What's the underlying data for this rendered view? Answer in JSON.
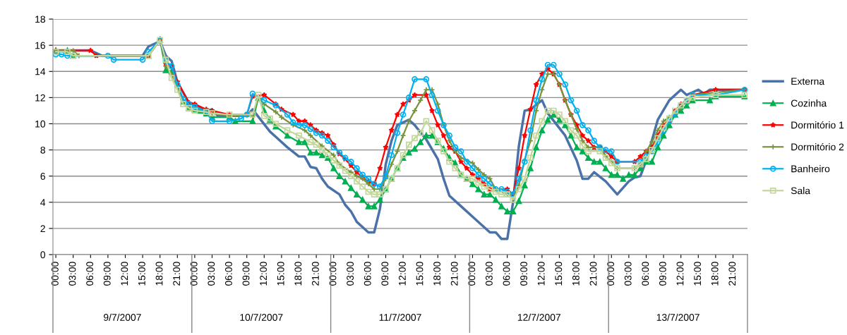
{
  "chart_data": {
    "type": "line",
    "xlim": [
      "2007-07-08T23:30",
      "2007-07-13T23:30"
    ],
    "ylim": [
      0,
      18
    ],
    "yticks": [
      0,
      2,
      4,
      6,
      8,
      10,
      12,
      14,
      16,
      18
    ],
    "grid": "y",
    "legend": "right",
    "xticks": [
      {
        "value": "2007-07-09T00:00",
        "label": "00:00"
      },
      {
        "value": "2007-07-09T03:00",
        "label": "03:00"
      },
      {
        "value": "2007-07-09T06:00",
        "label": "06:00"
      },
      {
        "value": "2007-07-09T09:00",
        "label": "09:00"
      },
      {
        "value": "2007-07-09T12:00",
        "label": "12:00"
      },
      {
        "value": "2007-07-09T15:00",
        "label": "15:00"
      },
      {
        "value": "2007-07-09T18:00",
        "label": "18:00"
      },
      {
        "value": "2007-07-09T21:00",
        "label": "21:00"
      },
      {
        "value": "2007-07-10T00:00",
        "label": "00:00"
      },
      {
        "value": "2007-07-10T03:00",
        "label": "03:00"
      },
      {
        "value": "2007-07-10T06:00",
        "label": "06:00"
      },
      {
        "value": "2007-07-10T09:00",
        "label": "09:00"
      },
      {
        "value": "2007-07-10T12:00",
        "label": "12:00"
      },
      {
        "value": "2007-07-10T15:00",
        "label": "15:00"
      },
      {
        "value": "2007-07-10T18:00",
        "label": "18:00"
      },
      {
        "value": "2007-07-10T21:00",
        "label": "21:00"
      },
      {
        "value": "2007-07-11T00:00",
        "label": "00:00"
      },
      {
        "value": "2007-07-11T03:00",
        "label": "03:00"
      },
      {
        "value": "2007-07-11T06:00",
        "label": "06:00"
      },
      {
        "value": "2007-07-11T09:00",
        "label": "09:00"
      },
      {
        "value": "2007-07-11T12:00",
        "label": "12:00"
      },
      {
        "value": "2007-07-11T15:00",
        "label": "15:00"
      },
      {
        "value": "2007-07-11T18:00",
        "label": "18:00"
      },
      {
        "value": "2007-07-11T21:00",
        "label": "21:00"
      },
      {
        "value": "2007-07-12T00:00",
        "label": "00:00"
      },
      {
        "value": "2007-07-12T03:00",
        "label": "03:00"
      },
      {
        "value": "2007-07-12T06:00",
        "label": "06:00"
      },
      {
        "value": "2007-07-12T09:00",
        "label": "09:00"
      },
      {
        "value": "2007-07-12T12:00",
        "label": "12:00"
      },
      {
        "value": "2007-07-12T15:00",
        "label": "15:00"
      },
      {
        "value": "2007-07-12T18:00",
        "label": "18:00"
      },
      {
        "value": "2007-07-12T21:00",
        "label": "21:00"
      },
      {
        "value": "2007-07-13T00:00",
        "label": "00:00"
      },
      {
        "value": "2007-07-13T03:00",
        "label": "03:00"
      },
      {
        "value": "2007-07-13T06:00",
        "label": "06:00"
      },
      {
        "value": "2007-07-13T09:00",
        "label": "09:00"
      },
      {
        "value": "2007-07-13T12:00",
        "label": "12:00"
      },
      {
        "value": "2007-07-13T15:00",
        "label": "15:00"
      },
      {
        "value": "2007-07-13T18:00",
        "label": "18:00"
      },
      {
        "value": "2007-07-13T21:00",
        "label": "21:00"
      }
    ],
    "annotations": [
      "9/7/2007",
      "10/7/2007",
      "11/7/2007",
      "12/7/2007",
      "13/7/2007"
    ],
    "series": [
      {
        "name": "Externa",
        "color": "#4a72a8",
        "marker": "none",
        "x": [
          "2007-07-09T00:00",
          "2007-07-09T06:00",
          "2007-07-09T08:00",
          "2007-07-09T15:00",
          "2007-07-09T16:00",
          "2007-07-09T18:00",
          "2007-07-09T19:00",
          "2007-07-09T20:00",
          "2007-07-09T21:00",
          "2007-07-09T23:00",
          "2007-07-10T00:00",
          "2007-07-10T02:00",
          "2007-07-10T03:00",
          "2007-07-10T04:00",
          "2007-07-10T09:00",
          "2007-07-10T10:00",
          "2007-07-10T13:00",
          "2007-07-10T14:00",
          "2007-07-10T16:00",
          "2007-07-10T18:00",
          "2007-07-10T19:00",
          "2007-07-10T20:00",
          "2007-07-10T21:00",
          "2007-07-10T22:00",
          "2007-07-10T23:00",
          "2007-07-11T01:00",
          "2007-07-11T02:00",
          "2007-07-11T03:00",
          "2007-07-11T04:00",
          "2007-07-11T06:00",
          "2007-07-11T07:00",
          "2007-07-11T08:00",
          "2007-07-11T09:00",
          "2007-07-11T10:00",
          "2007-07-11T11:00",
          "2007-07-11T13:00",
          "2007-07-11T14:00",
          "2007-07-11T16:00",
          "2007-07-11T18:00",
          "2007-07-11T19:00",
          "2007-07-11T20:00",
          "2007-07-11T22:00",
          "2007-07-12T00:00",
          "2007-07-12T03:00",
          "2007-07-12T04:00",
          "2007-07-12T05:00",
          "2007-07-12T06:00",
          "2007-07-12T07:00",
          "2007-07-12T08:00",
          "2007-07-12T09:00",
          "2007-07-12T10:00",
          "2007-07-12T12:00",
          "2007-07-12T13:00",
          "2007-07-12T16:00",
          "2007-07-12T18:00",
          "2007-07-12T19:00",
          "2007-07-12T20:00",
          "2007-07-12T21:00",
          "2007-07-12T23:00",
          "2007-07-13T01:00",
          "2007-07-13T03:00",
          "2007-07-13T04:00",
          "2007-07-13T05:00",
          "2007-07-13T06:00",
          "2007-07-13T08:00",
          "2007-07-13T10:00",
          "2007-07-13T12:00",
          "2007-07-13T13:00",
          "2007-07-13T15:00",
          "2007-07-13T16:00",
          "2007-07-13T17:00",
          "2007-07-13T23:00"
        ],
        "values": [
          15.6,
          15.6,
          15.2,
          15.2,
          15.9,
          16.3,
          15.2,
          14.8,
          13.2,
          11.6,
          11.5,
          11.0,
          11.1,
          10.6,
          10.6,
          11.1,
          9.4,
          9.0,
          8.2,
          7.5,
          7.5,
          6.7,
          6.6,
          5.8,
          5.2,
          4.6,
          3.8,
          3.3,
          2.5,
          1.7,
          1.7,
          3.5,
          6.9,
          8.7,
          9.9,
          10.3,
          9.9,
          8.8,
          7.3,
          5.8,
          4.5,
          3.7,
          2.9,
          1.7,
          1.7,
          1.2,
          1.2,
          4.0,
          8.3,
          11.0,
          11.1,
          11.8,
          10.8,
          9.1,
          7.2,
          5.8,
          5.8,
          6.3,
          5.6,
          4.6,
          5.6,
          5.9,
          6.0,
          7.2,
          10.3,
          11.8,
          12.6,
          12.2,
          12.6,
          12.3,
          12.6,
          12.6
        ]
      },
      {
        "name": "Cozinha",
        "color": "#00b050",
        "marker": "triangle",
        "x": [
          "2007-07-09T00:00",
          "2007-07-09T02:00",
          "2007-07-09T03:00",
          "2007-07-09T16:00",
          "2007-07-09T18:00",
          "2007-07-09T19:00",
          "2007-07-09T20:00",
          "2007-07-09T21:00",
          "2007-07-09T22:00",
          "2007-07-09T23:00",
          "2007-07-10T00:00",
          "2007-07-10T01:00",
          "2007-07-10T02:00",
          "2007-07-10T03:00",
          "2007-07-10T06:00",
          "2007-07-10T07:00",
          "2007-07-10T10:00",
          "2007-07-10T11:00",
          "2007-07-10T12:00",
          "2007-07-10T13:00",
          "2007-07-10T14:00",
          "2007-07-10T16:00",
          "2007-07-10T18:00",
          "2007-07-10T19:00",
          "2007-07-10T20:00",
          "2007-07-10T21:00",
          "2007-07-10T22:00",
          "2007-07-10T23:00",
          "2007-07-11T00:00",
          "2007-07-11T01:00",
          "2007-07-11T02:00",
          "2007-07-11T03:00",
          "2007-07-11T04:00",
          "2007-07-11T05:00",
          "2007-07-11T06:00",
          "2007-07-11T07:00",
          "2007-07-11T08:00",
          "2007-07-11T09:00",
          "2007-07-11T10:00",
          "2007-07-11T11:00",
          "2007-07-11T12:00",
          "2007-07-11T13:00",
          "2007-07-11T14:00",
          "2007-07-11T15:00",
          "2007-07-11T16:00",
          "2007-07-11T17:00",
          "2007-07-11T18:00",
          "2007-07-11T19:00",
          "2007-07-11T20:00",
          "2007-07-11T21:00",
          "2007-07-11T22:00",
          "2007-07-11T23:00",
          "2007-07-12T00:00",
          "2007-07-12T01:00",
          "2007-07-12T02:00",
          "2007-07-12T03:00",
          "2007-07-12T04:00",
          "2007-07-12T05:00",
          "2007-07-12T06:00",
          "2007-07-12T07:00",
          "2007-07-12T08:00",
          "2007-07-12T09:00",
          "2007-07-12T10:00",
          "2007-07-12T11:00",
          "2007-07-12T12:00",
          "2007-07-12T13:00",
          "2007-07-12T14:00",
          "2007-07-12T15:00",
          "2007-07-12T16:00",
          "2007-07-12T17:00",
          "2007-07-12T18:00",
          "2007-07-12T19:00",
          "2007-07-12T20:00",
          "2007-07-12T21:00",
          "2007-07-12T22:00",
          "2007-07-12T23:00",
          "2007-07-13T00:00",
          "2007-07-13T01:00",
          "2007-07-13T02:00",
          "2007-07-13T03:00",
          "2007-07-13T04:00",
          "2007-07-13T05:00",
          "2007-07-13T06:00",
          "2007-07-13T07:00",
          "2007-07-13T08:00",
          "2007-07-13T09:00",
          "2007-07-13T10:00",
          "2007-07-13T11:00",
          "2007-07-13T12:00",
          "2007-07-13T13:00",
          "2007-07-13T14:00",
          "2007-07-13T17:00",
          "2007-07-13T18:00",
          "2007-07-13T23:00"
        ],
        "values": [
          15.6,
          15.6,
          15.2,
          15.2,
          16.4,
          14.1,
          14.0,
          13.0,
          11.7,
          11.2,
          11.1,
          11.0,
          10.8,
          10.5,
          10.5,
          10.2,
          10.2,
          12.0,
          11.0,
          10.3,
          9.8,
          9.1,
          8.6,
          8.6,
          7.8,
          7.8,
          7.6,
          7.4,
          6.6,
          6.0,
          5.6,
          5.1,
          4.6,
          4.2,
          3.7,
          3.7,
          4.2,
          5.0,
          5.8,
          6.6,
          7.4,
          7.8,
          8.1,
          8.6,
          9.1,
          9.1,
          8.6,
          8.1,
          7.4,
          7.0,
          6.1,
          5.8,
          5.4,
          5.0,
          4.6,
          4.6,
          4.2,
          3.7,
          3.3,
          3.3,
          4.1,
          5.3,
          6.6,
          8.2,
          9.5,
          10.3,
          10.7,
          10.3,
          9.9,
          9.1,
          8.2,
          7.9,
          7.4,
          7.1,
          7.1,
          6.6,
          6.1,
          6.1,
          5.8,
          6.1,
          6.1,
          6.6,
          7.1,
          7.1,
          8.2,
          9.1,
          9.9,
          10.7,
          11.0,
          11.4,
          11.8,
          11.8,
          12.1,
          12.1
        ]
      },
      {
        "name": "Dormitório 1",
        "color": "#ff0000",
        "marker": "star",
        "x": [
          "2007-07-09T00:00",
          "2007-07-09T06:00",
          "2007-07-09T07:00",
          "2007-07-09T16:00",
          "2007-07-09T18:00",
          "2007-07-09T19:00",
          "2007-07-09T20:00",
          "2007-07-09T21:00",
          "2007-07-09T23:00",
          "2007-07-10T00:00",
          "2007-07-10T02:00",
          "2007-07-10T03:00",
          "2007-07-10T06:00",
          "2007-07-10T09:00",
          "2007-07-10T10:00",
          "2007-07-10T12:00",
          "2007-07-10T14:00",
          "2007-07-10T15:00",
          "2007-07-10T17:00",
          "2007-07-10T18:00",
          "2007-07-10T19:00",
          "2007-07-10T20:00",
          "2007-07-10T21:00",
          "2007-07-10T22:00",
          "2007-07-10T23:00",
          "2007-07-11T00:00",
          "2007-07-11T01:00",
          "2007-07-11T02:00",
          "2007-07-11T03:00",
          "2007-07-11T04:00",
          "2007-07-11T05:00",
          "2007-07-11T06:00",
          "2007-07-11T07:00",
          "2007-07-11T08:00",
          "2007-07-11T09:00",
          "2007-07-11T10:00",
          "2007-07-11T11:00",
          "2007-07-11T12:00",
          "2007-07-11T13:00",
          "2007-07-11T14:00",
          "2007-07-11T16:00",
          "2007-07-11T17:00",
          "2007-07-11T18:00",
          "2007-07-11T19:00",
          "2007-07-11T20:00",
          "2007-07-11T21:00",
          "2007-07-11T22:00",
          "2007-07-11T23:00",
          "2007-07-12T00:00",
          "2007-07-12T01:00",
          "2007-07-12T02:00",
          "2007-07-12T03:00",
          "2007-07-12T06:00",
          "2007-07-12T07:00",
          "2007-07-12T08:00",
          "2007-07-12T09:00",
          "2007-07-12T10:00",
          "2007-07-12T11:00",
          "2007-07-12T12:00",
          "2007-07-12T13:00",
          "2007-07-12T14:00",
          "2007-07-12T15:00",
          "2007-07-12T16:00",
          "2007-07-12T17:00",
          "2007-07-12T18:00",
          "2007-07-12T19:00",
          "2007-07-12T20:00",
          "2007-07-12T21:00",
          "2007-07-12T22:00",
          "2007-07-12T23:00",
          "2007-07-13T00:00",
          "2007-07-13T01:00",
          "2007-07-13T04:00",
          "2007-07-13T05:00",
          "2007-07-13T06:00",
          "2007-07-13T07:00",
          "2007-07-13T08:00",
          "2007-07-13T09:00",
          "2007-07-13T10:00",
          "2007-07-13T11:00",
          "2007-07-13T12:00",
          "2007-07-13T13:00",
          "2007-07-13T14:00",
          "2007-07-13T18:00",
          "2007-07-13T23:00"
        ],
        "values": [
          15.6,
          15.6,
          15.2,
          15.2,
          16.4,
          14.6,
          14.4,
          13.2,
          11.6,
          11.5,
          11.1,
          11.0,
          10.7,
          10.7,
          12.1,
          12.2,
          11.5,
          11.1,
          10.7,
          10.2,
          10.2,
          9.9,
          9.5,
          9.3,
          9.1,
          8.4,
          7.7,
          7.3,
          6.8,
          6.3,
          5.9,
          5.6,
          5.4,
          6.6,
          8.2,
          9.5,
          10.7,
          11.5,
          11.8,
          12.2,
          12.2,
          11.0,
          9.9,
          9.1,
          8.2,
          7.9,
          7.1,
          6.6,
          6.1,
          5.8,
          5.4,
          5.0,
          5.0,
          4.6,
          6.6,
          9.1,
          11.1,
          13.0,
          13.8,
          14.2,
          13.8,
          13.0,
          11.8,
          10.7,
          9.9,
          9.1,
          8.7,
          8.2,
          8.2,
          7.9,
          7.5,
          7.1,
          7.1,
          7.5,
          7.9,
          8.2,
          9.1,
          9.9,
          10.3,
          11.0,
          11.5,
          11.8,
          12.2,
          12.6,
          12.6
        ]
      },
      {
        "name": "Dormitório 2",
        "color": "#77933c",
        "marker": "cross",
        "x": [
          "2007-07-09T00:00",
          "2007-07-09T03:00",
          "2007-07-09T04:00",
          "2007-07-09T16:00",
          "2007-07-09T18:00",
          "2007-07-09T19:00",
          "2007-07-09T20:00",
          "2007-07-09T21:00",
          "2007-07-09T22:00",
          "2007-07-09T23:00",
          "2007-07-10T00:00",
          "2007-07-10T02:00",
          "2007-07-10T03:00",
          "2007-07-10T06:00",
          "2007-07-10T10:00",
          "2007-07-10T11:00",
          "2007-07-10T12:00",
          "2007-07-10T14:00",
          "2007-07-10T15:00",
          "2007-07-10T17:00",
          "2007-07-10T19:00",
          "2007-07-10T20:00",
          "2007-07-10T22:00",
          "2007-07-11T00:00",
          "2007-07-11T01:00",
          "2007-07-11T03:00",
          "2007-07-11T04:00",
          "2007-07-11T05:00",
          "2007-07-11T06:00",
          "2007-07-11T07:00",
          "2007-07-11T08:00",
          "2007-07-11T09:00",
          "2007-07-11T10:00",
          "2007-07-11T11:00",
          "2007-07-11T12:00",
          "2007-07-11T13:00",
          "2007-07-11T14:00",
          "2007-07-11T15:00",
          "2007-07-11T16:00",
          "2007-07-11T17:00",
          "2007-07-11T18:00",
          "2007-07-11T19:00",
          "2007-07-11T20:00",
          "2007-07-11T21:00",
          "2007-07-11T22:00",
          "2007-07-12T00:00",
          "2007-07-12T01:00",
          "2007-07-12T02:00",
          "2007-07-12T03:00",
          "2007-07-12T04:00",
          "2007-07-12T06:00",
          "2007-07-12T07:00",
          "2007-07-12T08:00",
          "2007-07-12T09:00",
          "2007-07-12T10:00",
          "2007-07-12T11:00",
          "2007-07-12T12:00",
          "2007-07-12T13:00",
          "2007-07-12T14:00",
          "2007-07-12T15:00",
          "2007-07-12T16:00",
          "2007-07-12T17:00",
          "2007-07-12T18:00",
          "2007-07-12T19:00",
          "2007-07-12T20:00",
          "2007-07-12T22:00",
          "2007-07-12T23:00",
          "2007-07-13T00:00",
          "2007-07-13T01:00",
          "2007-07-13T04:00",
          "2007-07-13T05:00",
          "2007-07-13T06:00",
          "2007-07-13T07:00",
          "2007-07-13T08:00",
          "2007-07-13T09:00",
          "2007-07-13T10:00",
          "2007-07-13T11:00",
          "2007-07-13T12:00",
          "2007-07-13T13:00",
          "2007-07-13T14:00",
          "2007-07-13T18:00",
          "2007-07-13T23:00"
        ],
        "values": [
          15.6,
          15.6,
          15.2,
          15.2,
          16.5,
          14.4,
          13.8,
          12.8,
          11.8,
          11.3,
          11.2,
          10.9,
          10.8,
          10.6,
          10.6,
          12.0,
          11.5,
          10.9,
          10.5,
          9.9,
          9.5,
          9.1,
          8.3,
          7.6,
          6.9,
          6.3,
          6.0,
          5.8,
          5.4,
          5.0,
          5.0,
          5.8,
          6.9,
          7.9,
          9.1,
          10.2,
          11.0,
          11.8,
          12.6,
          12.6,
          11.5,
          9.9,
          8.7,
          7.9,
          7.4,
          7.0,
          6.5,
          6.1,
          5.8,
          5.0,
          4.6,
          4.3,
          5.3,
          7.2,
          8.7,
          11.0,
          12.6,
          13.8,
          13.8,
          13.0,
          11.8,
          10.7,
          9.6,
          8.7,
          8.2,
          8.2,
          7.5,
          7.1,
          6.6,
          6.6,
          6.9,
          7.9,
          8.6,
          9.5,
          10.2,
          10.5,
          10.8,
          11.2,
          11.8,
          12.2,
          12.4,
          12.6
        ]
      },
      {
        "name": "Banheiro",
        "color": "#00b0f0",
        "marker": "circle",
        "x": [
          "2007-07-09T00:00",
          "2007-07-09T01:00",
          "2007-07-09T02:00",
          "2007-07-09T09:00",
          "2007-07-09T10:00",
          "2007-07-09T15:00",
          "2007-07-09T16:00",
          "2007-07-09T18:00",
          "2007-07-09T19:00",
          "2007-07-09T20:00",
          "2007-07-09T21:00",
          "2007-07-09T22:00",
          "2007-07-09T23:00",
          "2007-07-10T00:00",
          "2007-07-10T02:00",
          "2007-07-10T03:00",
          "2007-07-10T06:00",
          "2007-07-10T08:00",
          "2007-07-10T09:00",
          "2007-07-10T10:00",
          "2007-07-10T12:00",
          "2007-07-10T14:00",
          "2007-07-10T16:00",
          "2007-07-10T17:00",
          "2007-07-10T18:00",
          "2007-07-10T19:00",
          "2007-07-10T20:00",
          "2007-07-10T21:00",
          "2007-07-10T22:00",
          "2007-07-10T23:00",
          "2007-07-11T00:00",
          "2007-07-11T01:00",
          "2007-07-11T02:00",
          "2007-07-11T03:00",
          "2007-07-11T04:00",
          "2007-07-11T05:00",
          "2007-07-11T06:00",
          "2007-07-11T07:00",
          "2007-07-11T08:00",
          "2007-07-11T09:00",
          "2007-07-11T10:00",
          "2007-07-11T11:00",
          "2007-07-11T12:00",
          "2007-07-11T13:00",
          "2007-07-11T14:00",
          "2007-07-11T16:00",
          "2007-07-11T17:00",
          "2007-07-11T18:00",
          "2007-07-11T19:00",
          "2007-07-11T20:00",
          "2007-07-11T21:00",
          "2007-07-11T22:00",
          "2007-07-11T23:00",
          "2007-07-12T00:00",
          "2007-07-12T01:00",
          "2007-07-12T02:00",
          "2007-07-12T03:00",
          "2007-07-12T04:00",
          "2007-07-12T05:00",
          "2007-07-12T06:00",
          "2007-07-12T07:00",
          "2007-07-12T08:00",
          "2007-07-12T09:00",
          "2007-07-12T10:00",
          "2007-07-12T11:00",
          "2007-07-12T12:00",
          "2007-07-12T13:00",
          "2007-07-12T14:00",
          "2007-07-12T15:00",
          "2007-07-12T16:00",
          "2007-07-12T17:00",
          "2007-07-12T18:00",
          "2007-07-12T19:00",
          "2007-07-12T20:00",
          "2007-07-12T21:00",
          "2007-07-12T22:00",
          "2007-07-12T23:00",
          "2007-07-13T00:00",
          "2007-07-13T01:00",
          "2007-07-13T05:00",
          "2007-07-13T06:00",
          "2007-07-13T07:00",
          "2007-07-13T08:00",
          "2007-07-13T09:00",
          "2007-07-13T10:00",
          "2007-07-13T11:00",
          "2007-07-13T12:00",
          "2007-07-13T13:00",
          "2007-07-13T14:00",
          "2007-07-13T18:00",
          "2007-07-13T23:00"
        ],
        "values": [
          15.3,
          15.3,
          15.2,
          15.2,
          14.9,
          14.9,
          15.5,
          16.4,
          14.8,
          14.4,
          13.0,
          11.9,
          11.5,
          11.3,
          10.9,
          10.2,
          10.2,
          10.4,
          10.7,
          12.3,
          11.8,
          11.4,
          10.7,
          10.1,
          9.9,
          9.9,
          9.6,
          9.3,
          9.1,
          8.7,
          8.2,
          7.8,
          7.4,
          7.1,
          6.6,
          6.1,
          5.8,
          5.4,
          5.2,
          6.0,
          7.6,
          9.3,
          10.7,
          12.0,
          13.4,
          13.4,
          12.2,
          11.0,
          9.9,
          9.1,
          8.2,
          7.9,
          7.1,
          6.6,
          6.1,
          5.8,
          5.4,
          5.0,
          5.0,
          4.8,
          4.6,
          5.8,
          7.1,
          9.5,
          11.8,
          13.4,
          14.5,
          14.5,
          13.8,
          13.0,
          11.8,
          11.0,
          9.9,
          9.5,
          8.7,
          8.2,
          8.0,
          7.9,
          7.1,
          7.1,
          7.5,
          7.9,
          8.6,
          9.5,
          10.2,
          10.8,
          11.4,
          11.7,
          12.2,
          12.2,
          12.6
        ]
      },
      {
        "name": "Sala",
        "color": "#c3d69b",
        "marker": "square",
        "x": [
          "2007-07-09T00:00",
          "2007-07-09T02:00",
          "2007-07-09T03:00",
          "2007-07-09T16:00",
          "2007-07-09T18:00",
          "2007-07-09T19:00",
          "2007-07-09T20:00",
          "2007-07-09T21:00",
          "2007-07-09T22:00",
          "2007-07-09T23:00",
          "2007-07-10T00:00",
          "2007-07-10T02:00",
          "2007-07-10T03:00",
          "2007-07-10T06:00",
          "2007-07-10T10:00",
          "2007-07-10T11:00",
          "2007-07-10T12:00",
          "2007-07-10T13:00",
          "2007-07-10T14:00",
          "2007-07-10T16:00",
          "2007-07-10T18:00",
          "2007-07-10T20:00",
          "2007-07-10T21:00",
          "2007-07-10T22:00",
          "2007-07-10T23:00",
          "2007-07-11T00:00",
          "2007-07-11T01:00",
          "2007-07-11T02:00",
          "2007-07-11T03:00",
          "2007-07-11T04:00",
          "2007-07-11T05:00",
          "2007-07-11T06:00",
          "2007-07-11T07:00",
          "2007-07-11T08:00",
          "2007-07-11T09:00",
          "2007-07-11T10:00",
          "2007-07-11T11:00",
          "2007-07-11T12:00",
          "2007-07-11T13:00",
          "2007-07-11T14:00",
          "2007-07-11T15:00",
          "2007-07-11T16:00",
          "2007-07-11T17:00",
          "2007-07-11T18:00",
          "2007-07-11T19:00",
          "2007-07-11T20:00",
          "2007-07-11T21:00",
          "2007-07-11T22:00",
          "2007-07-11T23:00",
          "2007-07-12T00:00",
          "2007-07-12T01:00",
          "2007-07-12T02:00",
          "2007-07-12T03:00",
          "2007-07-12T04:00",
          "2007-07-12T05:00",
          "2007-07-12T06:00",
          "2007-07-12T07:00",
          "2007-07-12T08:00",
          "2007-07-12T09:00",
          "2007-07-12T10:00",
          "2007-07-12T11:00",
          "2007-07-12T12:00",
          "2007-07-12T13:00",
          "2007-07-12T14:00",
          "2007-07-12T15:00",
          "2007-07-12T16:00",
          "2007-07-12T17:00",
          "2007-07-12T18:00",
          "2007-07-12T19:00",
          "2007-07-12T20:00",
          "2007-07-12T22:00",
          "2007-07-12T23:00",
          "2007-07-13T00:00",
          "2007-07-13T01:00",
          "2007-07-13T04:00",
          "2007-07-13T05:00",
          "2007-07-13T06:00",
          "2007-07-13T07:00",
          "2007-07-13T08:00",
          "2007-07-13T09:00",
          "2007-07-13T10:00",
          "2007-07-13T11:00",
          "2007-07-13T12:00",
          "2007-07-13T13:00",
          "2007-07-13T14:00",
          "2007-07-13T18:00",
          "2007-07-13T23:00"
        ],
        "values": [
          15.5,
          15.5,
          15.2,
          15.2,
          16.4,
          14.9,
          13.5,
          12.6,
          11.5,
          11.2,
          11.0,
          10.9,
          10.8,
          10.7,
          10.7,
          12.2,
          10.6,
          10.4,
          10.0,
          9.5,
          9.1,
          8.6,
          8.4,
          8.0,
          7.6,
          7.2,
          6.8,
          6.4,
          6.0,
          5.6,
          5.2,
          4.8,
          4.6,
          4.6,
          5.0,
          5.8,
          6.6,
          7.6,
          8.4,
          8.9,
          9.3,
          10.2,
          9.5,
          8.7,
          7.9,
          7.1,
          6.6,
          6.1,
          5.8,
          5.8,
          5.5,
          5.2,
          5.0,
          4.8,
          4.6,
          4.6,
          4.2,
          5.0,
          5.8,
          7.4,
          9.1,
          10.2,
          11.0,
          11.0,
          10.7,
          10.2,
          9.5,
          9.1,
          8.3,
          7.9,
          7.9,
          7.4,
          7.0,
          6.6,
          6.6,
          6.9,
          7.3,
          8.0,
          8.9,
          9.7,
          10.4,
          11.0,
          11.4,
          11.8,
          12.0,
          12.2,
          12.2
        ]
      }
    ]
  }
}
